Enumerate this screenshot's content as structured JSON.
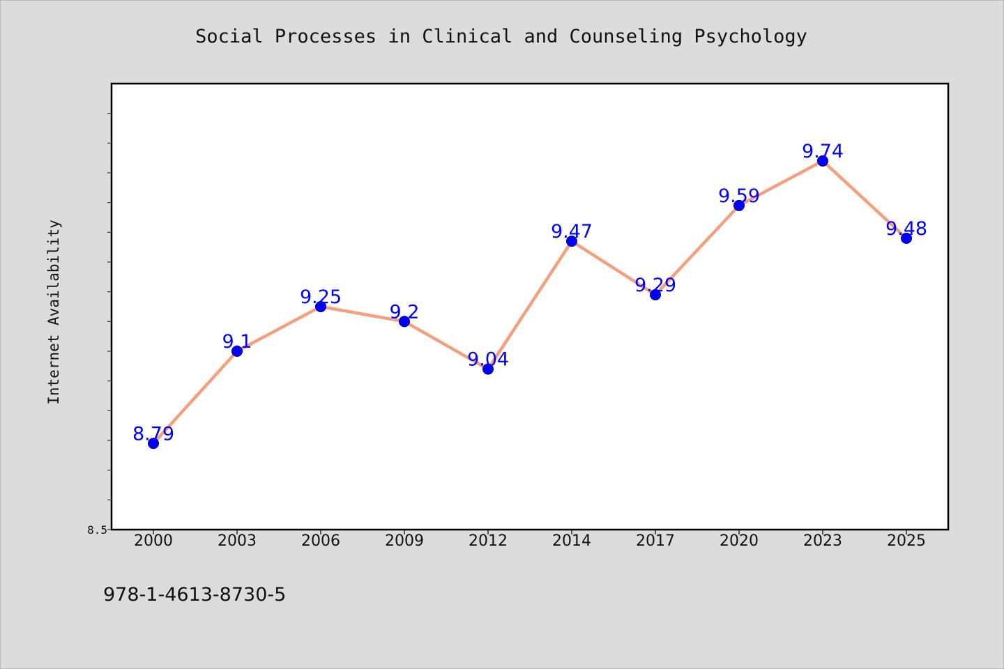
{
  "chart_data": {
    "type": "line",
    "title": "Social Processes in Clinical and Counseling Psychology",
    "xlabel": "",
    "ylabel": "Internet Availability",
    "categories": [
      "2000",
      "2003",
      "2006",
      "2009",
      "2012",
      "2014",
      "2017",
      "2020",
      "2023",
      "2025"
    ],
    "series": [
      {
        "values": [
          8.79,
          9.1,
          9.25,
          9.2,
          9.04,
          9.47,
          9.29,
          9.59,
          9.74,
          9.48
        ],
        "line_color": "#f4a07e",
        "marker_color": "#0000ff",
        "label_color": "#0000ff"
      }
    ],
    "ylim": [
      8.5,
      10.0
    ],
    "ytick_labels": [
      "8.5"
    ],
    "grid": false,
    "legend": "none"
  },
  "footer": {
    "isbn": "978-1-4613-8730-5"
  }
}
